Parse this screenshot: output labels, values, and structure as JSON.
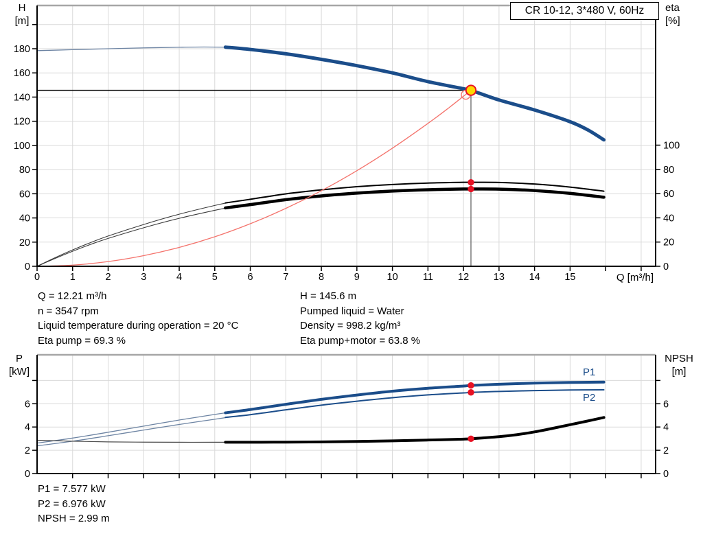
{
  "title_box": {
    "text": "CR 10-12, 3*480 V, 60Hz"
  },
  "colors": {
    "accent_blue": "#1b4d8a",
    "lead_blue": "#6d84a3",
    "marker_red": "#e81123",
    "system_red": "#f4736c",
    "op_yellow": "#ffd800",
    "grid": "#d9d9d9",
    "frame_gray": "#a6a6a6",
    "axis": "#000000",
    "op_line_gray": "#7a7a7a"
  },
  "annotations": {
    "left": [
      "Q = 12.21 m³/h",
      "n = 3547 rpm",
      "Liquid temperature during operation = 20 °C",
      "Eta pump = 69.3 %"
    ],
    "right": [
      "H = 145.6 m",
      "Pumped liquid = Water",
      "Density = 998.2 kg/m³",
      "Eta pump+motor = 63.8 %"
    ],
    "bottom": [
      "P1 = 7.577 kW",
      "P2 = 6.976 kW",
      "NPSH = 2.99 m"
    ]
  },
  "chart_data": [
    {
      "id": "qh-eta-chart",
      "type": "line",
      "x_axis": {
        "label": "Q [m³/h]",
        "labeled_ticks": [
          0,
          1,
          2,
          3,
          4,
          5,
          6,
          7,
          8,
          9,
          10,
          11,
          12,
          13,
          14,
          15
        ],
        "unlabeled_ticks": [
          16,
          17
        ],
        "range": [
          0,
          17.4
        ]
      },
      "left_axis": {
        "label_line1": "H",
        "label_line2": "[m]",
        "labeled_ticks": [
          0,
          20,
          40,
          60,
          80,
          100,
          120,
          140,
          160,
          180
        ],
        "unlabeled_ticks": [
          200
        ],
        "range": [
          0,
          215
        ]
      },
      "right_axis": {
        "label_line1": "eta",
        "label_line2": "[%]",
        "labeled_ticks": [
          0,
          20,
          40,
          60,
          80,
          100
        ],
        "unlabeled_ticks": [],
        "range": [
          0,
          215
        ]
      },
      "grid": true,
      "operating_point": {
        "q": 12.21,
        "head": 145.6,
        "eta_pump": 69.3,
        "eta_pump_motor": 63.8
      },
      "series": [
        {
          "name": "head-curve-lead",
          "axis": "left",
          "color": "#6d84a3",
          "width": 1.3,
          "points": [
            [
              0,
              178.4
            ],
            [
              1,
              179.2
            ],
            [
              2,
              180.0
            ],
            [
              3,
              180.7
            ],
            [
              4,
              181.2
            ],
            [
              4.7,
              181.4
            ],
            [
              5.45,
              181.2
            ]
          ]
        },
        {
          "name": "head-curve",
          "axis": "left",
          "color": "#1b4d8a",
          "width": 5,
          "points": [
            [
              5.3,
              181.3
            ],
            [
              6,
              179.4
            ],
            [
              7,
              175.8
            ],
            [
              8,
              171.2
            ],
            [
              9,
              166.0
            ],
            [
              10,
              160.0
            ],
            [
              11,
              152.8
            ],
            [
              12,
              146.9
            ],
            [
              12.21,
              145.6
            ],
            [
              13,
              137.6
            ],
            [
              14,
              129.3
            ],
            [
              15,
              119.6
            ],
            [
              15.5,
              112.8
            ],
            [
              15.95,
              104.6
            ]
          ]
        },
        {
          "name": "eta-pump-curve-lead",
          "axis": "right",
          "color": "#3a3a3a",
          "width": 1.1,
          "points": [
            [
              0,
              0
            ],
            [
              0.5,
              7
            ],
            [
              1,
              13.5
            ],
            [
              1.5,
              19.5
            ],
            [
              2,
              25
            ],
            [
              3,
              34.5
            ],
            [
              4,
              43
            ],
            [
              5,
              50.2
            ],
            [
              5.45,
              53
            ]
          ]
        },
        {
          "name": "eta-pump-curve",
          "axis": "right",
          "color": "#000000",
          "width": 2,
          "points": [
            [
              5.3,
              52.3
            ],
            [
              6,
              55.3
            ],
            [
              7,
              59.8
            ],
            [
              8,
              63.1
            ],
            [
              9,
              65.7
            ],
            [
              10,
              67.5
            ],
            [
              11,
              68.7
            ],
            [
              12,
              69.3
            ],
            [
              12.21,
              69.3
            ],
            [
              13,
              69.2
            ],
            [
              14,
              67.9
            ],
            [
              15,
              65.4
            ],
            [
              15.95,
              62.0
            ]
          ]
        },
        {
          "name": "eta-pump-motor-curve-lead",
          "axis": "right",
          "color": "#3a3a3a",
          "width": 1.1,
          "points": [
            [
              0,
              0
            ],
            [
              0.5,
              6.4
            ],
            [
              1,
              12.4
            ],
            [
              1.5,
              18
            ],
            [
              2,
              23
            ],
            [
              3,
              31.8
            ],
            [
              4,
              39.6
            ],
            [
              5,
              46.2
            ],
            [
              5.45,
              48.8
            ]
          ]
        },
        {
          "name": "eta-pump-motor-curve",
          "axis": "right",
          "color": "#000000",
          "width": 4.5,
          "points": [
            [
              5.3,
              48.2
            ],
            [
              6,
              50.9
            ],
            [
              7,
              55.0
            ],
            [
              8,
              58.1
            ],
            [
              9,
              60.4
            ],
            [
              10,
              62.1
            ],
            [
              11,
              63.2
            ],
            [
              12,
              63.8
            ],
            [
              12.21,
              63.8
            ],
            [
              13,
              63.7
            ],
            [
              14,
              62.5
            ],
            [
              15,
              60.2
            ],
            [
              15.95,
              57.0
            ]
          ]
        },
        {
          "name": "system-curve",
          "axis": "left",
          "color": "#f4736c",
          "width": 1.3,
          "points": [
            [
              0,
              0
            ],
            [
              1,
              0.98
            ],
            [
              2,
              3.9
            ],
            [
              3,
              8.8
            ],
            [
              4,
              15.6
            ],
            [
              5,
              24.4
            ],
            [
              6,
              35.2
            ],
            [
              7,
              47.9
            ],
            [
              8,
              62.5
            ],
            [
              9,
              79.1
            ],
            [
              10,
              97.7
            ],
            [
              11,
              118.2
            ],
            [
              11.6,
              131.4
            ],
            [
              12.21,
              145.6
            ]
          ]
        }
      ]
    },
    {
      "id": "power-npsh-chart",
      "type": "line",
      "x_axis": {
        "label": "",
        "labeled_ticks": [],
        "unlabeled_ticks": [
          1,
          2,
          3,
          4,
          5,
          6,
          7,
          8,
          9,
          10,
          11,
          12,
          13,
          14,
          15,
          16,
          17
        ],
        "range": [
          0,
          17.4
        ]
      },
      "left_axis": {
        "label_line1": "P",
        "label_line2": "[kW]",
        "labeled_ticks": [
          0,
          2,
          4,
          6
        ],
        "unlabeled_ticks": [
          8
        ],
        "range": [
          0,
          10.2
        ]
      },
      "right_axis": {
        "label_line1": "NPSH",
        "label_line2": "[m]",
        "labeled_ticks": [
          0,
          2,
          4,
          6
        ],
        "unlabeled_ticks": [
          8
        ],
        "range": [
          0,
          10.2
        ]
      },
      "grid": true,
      "legend": {
        "p1": "P1",
        "p2": "P2"
      },
      "operating_point": {
        "q": 12.21,
        "p1": 7.577,
        "p2": 6.976,
        "npsh": 2.99
      },
      "series": [
        {
          "name": "p1-curve-lead",
          "axis": "left",
          "color": "#6d84a3",
          "width": 1.3,
          "points": [
            [
              0,
              2.62
            ],
            [
              1,
              3.05
            ],
            [
              2,
              3.55
            ],
            [
              3,
              4.08
            ],
            [
              4,
              4.6
            ],
            [
              5,
              5.08
            ],
            [
              5.45,
              5.28
            ]
          ]
        },
        {
          "name": "p1-curve",
          "axis": "left",
          "color": "#1b4d8a",
          "width": 4,
          "points": [
            [
              5.3,
              5.22
            ],
            [
              6,
              5.5
            ],
            [
              7,
              5.95
            ],
            [
              8,
              6.38
            ],
            [
              9,
              6.75
            ],
            [
              10,
              7.08
            ],
            [
              11,
              7.33
            ],
            [
              12,
              7.52
            ],
            [
              12.21,
              7.577
            ],
            [
              13,
              7.68
            ],
            [
              14,
              7.77
            ],
            [
              15,
              7.83
            ],
            [
              15.95,
              7.86
            ]
          ]
        },
        {
          "name": "p2-curve-lead",
          "axis": "left",
          "color": "#6d84a3",
          "width": 1.3,
          "points": [
            [
              0,
              2.38
            ],
            [
              1,
              2.78
            ],
            [
              2,
              3.25
            ],
            [
              3,
              3.74
            ],
            [
              4,
              4.22
            ],
            [
              5,
              4.67
            ],
            [
              5.45,
              4.87
            ]
          ]
        },
        {
          "name": "p2-curve",
          "axis": "left",
          "color": "#1b4d8a",
          "width": 2,
          "points": [
            [
              5.3,
              4.83
            ],
            [
              6,
              5.06
            ],
            [
              7,
              5.48
            ],
            [
              8,
              5.88
            ],
            [
              9,
              6.22
            ],
            [
              10,
              6.52
            ],
            [
              11,
              6.76
            ],
            [
              12,
              6.93
            ],
            [
              12.21,
              6.976
            ],
            [
              13,
              7.06
            ],
            [
              14,
              7.13
            ],
            [
              15,
              7.18
            ],
            [
              15.95,
              7.2
            ]
          ]
        },
        {
          "name": "npsh-curve-lead",
          "axis": "right",
          "color": "#4a4a4a",
          "width": 1.2,
          "points": [
            [
              0,
              2.86
            ],
            [
              1,
              2.78
            ],
            [
              2,
              2.72
            ],
            [
              3,
              2.7
            ],
            [
              4,
              2.69
            ],
            [
              5,
              2.69
            ],
            [
              5.45,
              2.69
            ]
          ]
        },
        {
          "name": "npsh-curve",
          "axis": "right",
          "color": "#000000",
          "width": 4,
          "points": [
            [
              5.3,
              2.69
            ],
            [
              6,
              2.69
            ],
            [
              7,
              2.7
            ],
            [
              8,
              2.72
            ],
            [
              9,
              2.76
            ],
            [
              10,
              2.81
            ],
            [
              11,
              2.88
            ],
            [
              12,
              2.96
            ],
            [
              12.21,
              2.99
            ],
            [
              13,
              3.17
            ],
            [
              13.5,
              3.34
            ],
            [
              14,
              3.58
            ],
            [
              14.5,
              3.88
            ],
            [
              15,
              4.2
            ],
            [
              15.5,
              4.52
            ],
            [
              15.95,
              4.82
            ]
          ]
        }
      ]
    }
  ]
}
